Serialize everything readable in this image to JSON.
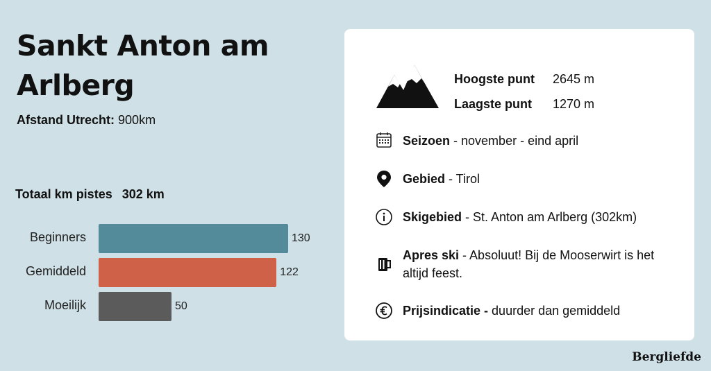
{
  "title": "Sankt Anton am Arlberg",
  "distance": {
    "label": "Afstand Utrecht:",
    "value": "900km"
  },
  "total": {
    "label": "Totaal km pistes",
    "value": "302 km"
  },
  "chart_data": {
    "type": "bar",
    "orientation": "horizontal",
    "categories": [
      "Beginners",
      "Gemiddeld",
      "Moeilijk"
    ],
    "values": [
      130,
      122,
      50
    ],
    "colors": [
      "#548b9a",
      "#cf6149",
      "#5b5b5b"
    ]
  },
  "elevation": {
    "highest_label": "Hoogste punt",
    "highest_value": "2645 m",
    "lowest_label": "Laagste punt",
    "lowest_value": "1270 m"
  },
  "info": {
    "season": {
      "label": "Seizoen",
      "text": " -  november - eind april"
    },
    "region": {
      "label": "Gebied",
      "text": " - Tirol"
    },
    "skiarea": {
      "label": "Skigebied",
      "text": " - St. Anton am Arlberg (302km)"
    },
    "apres": {
      "label": "Apres ski",
      "text": " - Absoluut! Bij de Mooserwirt is het altijd feest."
    },
    "price": {
      "label": "Prijsindicatie -",
      "text": " duurder dan gemiddeld"
    }
  },
  "icons": [
    "mountain-icon",
    "calendar-icon",
    "location-pin-icon",
    "info-icon",
    "beer-mug-icon",
    "euro-icon"
  ],
  "brand": "Bergliefde"
}
